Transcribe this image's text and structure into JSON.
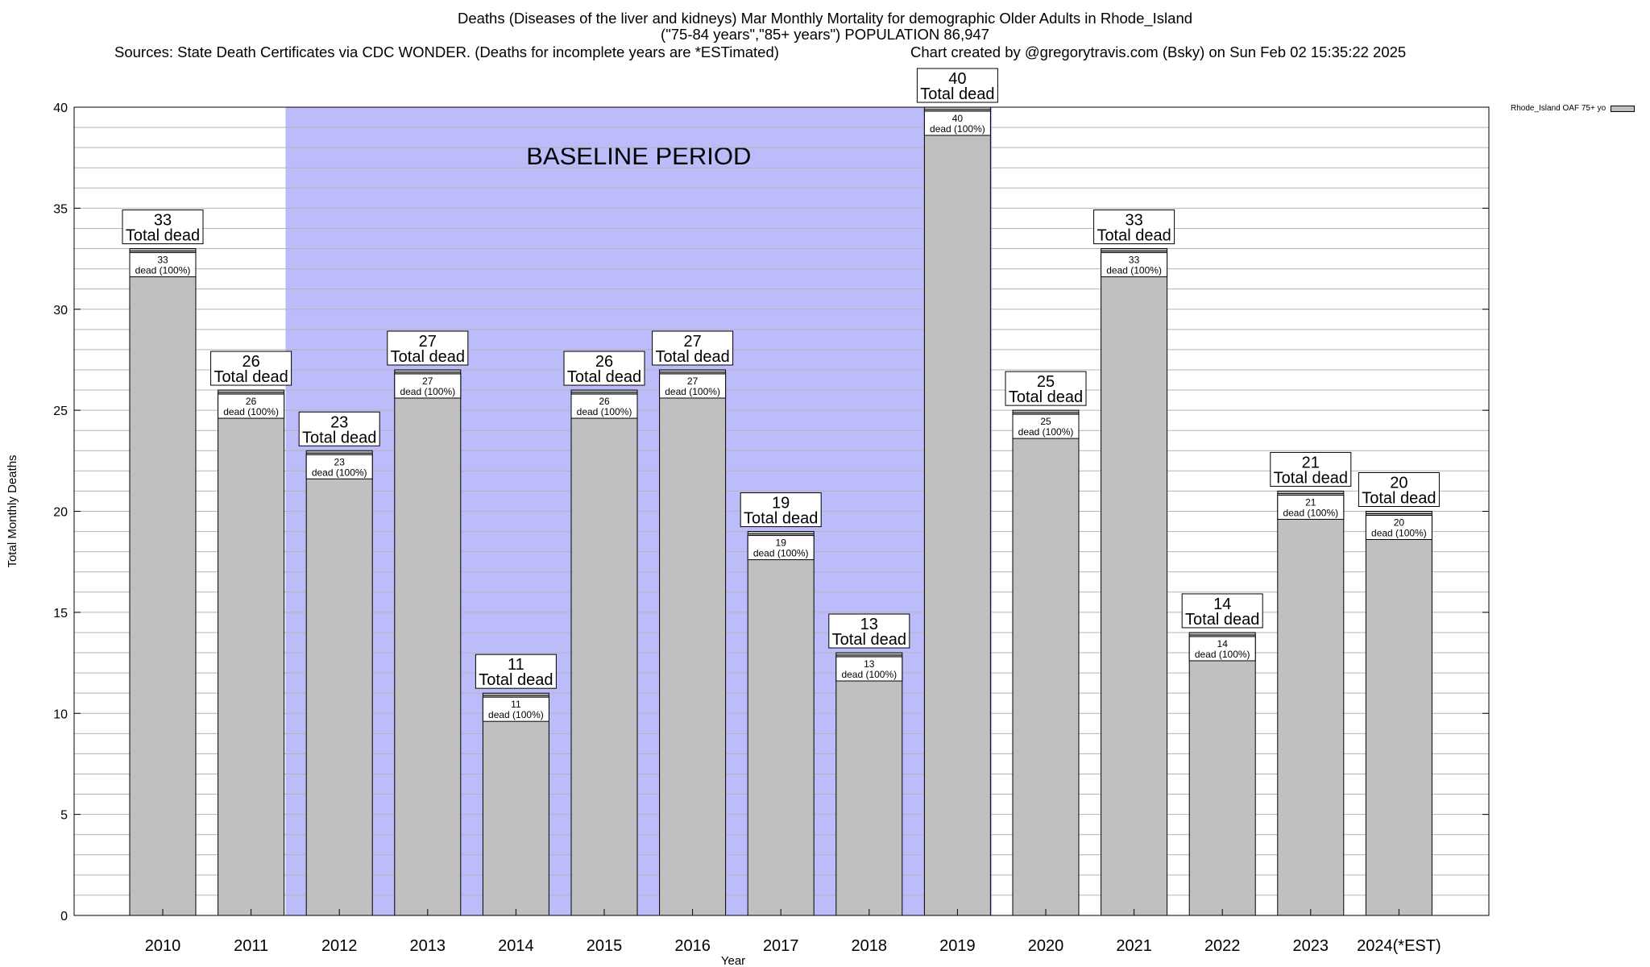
{
  "title": {
    "line1": "Deaths (Diseases of the liver and kidneys) Mar Monthly Mortality for demographic Older Adults in Rhode_Island",
    "line2": "(\"75-84 years\",\"85+ years\") POPULATION 86,947",
    "sources": "Sources: State Death Certificates via CDC WONDER. (Deaths for incomplete years are *ESTimated)",
    "credit": "Chart created by @gregorytravis.com (Bsky) on Sun Feb 02 15:35:22 2025"
  },
  "colors": {
    "bar": "#c0c0c0",
    "baseline_band": "#bcbcfa",
    "grid": "#b4b4b4"
  },
  "chart_data": {
    "type": "bar",
    "xlabel": "Year",
    "ylabel": "Total Monthly Deaths",
    "ylim": [
      0,
      40
    ],
    "yticks": [
      0,
      5,
      10,
      15,
      20,
      25,
      30,
      35,
      40
    ],
    "grid": true,
    "legend_position": "top-right",
    "series": [
      {
        "name": "Rhode_Island OAF 75+ yo",
        "values": [
          33,
          26,
          23,
          27,
          11,
          26,
          27,
          19,
          13,
          40,
          25,
          33,
          14,
          21,
          20
        ]
      }
    ],
    "categories": [
      "2010",
      "2011",
      "2012",
      "2013",
      "2014",
      "2015",
      "2016",
      "2017",
      "2018",
      "2019",
      "2020",
      "2021",
      "2022",
      "2023",
      "2024(*EST)"
    ],
    "bar_top_label": "Total dead",
    "bar_inner_label": "dead (100%)",
    "baseline_period": {
      "label": "BASELINE PERIOD",
      "from": "2012",
      "to": "2019"
    }
  }
}
